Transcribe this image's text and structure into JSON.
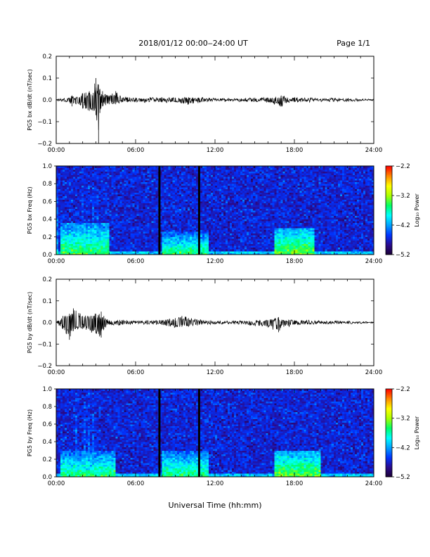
{
  "header": {
    "title": "2018/01/12  00:00‒24:00 UT",
    "page": "Page 1/1"
  },
  "xaxis_label": "Universal Time (hh:mm)",
  "colors": {
    "trace": "#000000",
    "colormap": [
      "#1a0033",
      "#2a0a8c",
      "#0033ff",
      "#00a0ff",
      "#00ffff",
      "#00ff66",
      "#aaff00",
      "#ffff00",
      "#ff8800",
      "#ff0000"
    ]
  },
  "chart_data": [
    {
      "type": "line",
      "id": "bx_dbdt",
      "ylabel": "PG5 bx dB/dt (nT/sec)",
      "xlim": [
        0,
        24
      ],
      "ylim": [
        -0.2,
        0.2
      ],
      "yticks": [
        "0.2",
        "0.1",
        "0.0",
        "−0.1",
        "−0.2"
      ],
      "xticks": [
        "00:00",
        "06:00",
        "12:00",
        "18:00",
        "24:00"
      ],
      "series": [
        {
          "x_hours": [
            0,
            1.0,
            1.2,
            1.5,
            2.0,
            2.5,
            3.0,
            3.2,
            3.3,
            3.5,
            4.0,
            4.5,
            5.0,
            6.0,
            8.0,
            9.0,
            10.0,
            11.0,
            12.0,
            14.0,
            16.0,
            17.0,
            17.5,
            18.0,
            20.0,
            22.0,
            24.0
          ],
          "envelope_max": [
            0.0,
            0.01,
            0.02,
            0.01,
            0.03,
            0.04,
            0.1,
            0.07,
            0.05,
            0.04,
            0.02,
            0.04,
            0.01,
            0.01,
            0.01,
            0.01,
            0.01,
            0.01,
            0.005,
            0.005,
            0.01,
            0.02,
            0.01,
            0.01,
            0.005,
            0.005,
            0.0
          ],
          "envelope_min": [
            0.0,
            -0.01,
            -0.03,
            -0.02,
            -0.04,
            -0.05,
            -0.07,
            -0.2,
            -0.06,
            -0.03,
            -0.02,
            -0.02,
            -0.01,
            -0.01,
            -0.01,
            -0.01,
            -0.02,
            -0.01,
            -0.005,
            -0.005,
            -0.01,
            -0.03,
            -0.01,
            -0.01,
            -0.005,
            -0.005,
            0.0
          ]
        }
      ]
    },
    {
      "type": "heatmap",
      "id": "bx_freq",
      "ylabel": "PG5 bx Freq (Hz)",
      "xlim": [
        0,
        24
      ],
      "ylim": [
        0,
        1.0
      ],
      "yticks": [
        "1.0",
        "0.8",
        "0.6",
        "0.4",
        "0.2",
        "0.0"
      ],
      "xticks": [
        "00:00",
        "06:00",
        "12:00",
        "18:00",
        "24:00"
      ],
      "colorbar": {
        "label": "Log₁₀ Power",
        "ticks": [
          "−2.2",
          "−3.2",
          "−4.2",
          "−5.2"
        ],
        "range": [
          -5.2,
          -2.2
        ]
      },
      "gap_lines_hours": [
        7.8,
        10.8
      ],
      "features": [
        {
          "t_start": 0.3,
          "t_end": 4.0,
          "f_max": 0.35,
          "power": -3.4
        },
        {
          "t_start": 8.0,
          "t_end": 11.5,
          "f_max": 0.25,
          "power": -3.5
        },
        {
          "t_start": 16.5,
          "t_end": 19.5,
          "f_max": 0.3,
          "power": -3.3
        }
      ]
    },
    {
      "type": "line",
      "id": "by_dbdt",
      "ylabel": "PG5 by dB/dt (nT/sec)",
      "xlim": [
        0,
        24
      ],
      "ylim": [
        -0.2,
        0.2
      ],
      "yticks": [
        "0.2",
        "0.1",
        "0.0",
        "−0.1",
        "−0.2"
      ],
      "xticks": [
        "00:00",
        "06:00",
        "12:00",
        "18:00",
        "24:00"
      ],
      "series": [
        {
          "x_hours": [
            0,
            0.5,
            1.0,
            1.3,
            2.0,
            3.0,
            3.4,
            3.6,
            4.0,
            5.0,
            6.0,
            8.0,
            9.0,
            9.5,
            10.0,
            11.0,
            12.0,
            14.0,
            16.0,
            16.8,
            17.2,
            18.0,
            20.0,
            22.0,
            24.0
          ],
          "envelope_max": [
            0.0,
            0.03,
            0.04,
            0.065,
            0.03,
            0.04,
            0.05,
            0.03,
            0.01,
            0.01,
            0.005,
            0.01,
            0.02,
            0.03,
            0.02,
            0.01,
            0.005,
            0.005,
            0.01,
            0.025,
            0.01,
            0.01,
            0.005,
            0.005,
            0.0
          ],
          "envelope_min": [
            0.0,
            -0.03,
            -0.08,
            -0.04,
            -0.03,
            -0.05,
            -0.07,
            -0.03,
            -0.01,
            -0.01,
            -0.005,
            -0.01,
            -0.02,
            -0.02,
            -0.02,
            -0.01,
            -0.005,
            -0.005,
            -0.02,
            -0.045,
            -0.02,
            -0.01,
            -0.005,
            -0.005,
            0.0
          ]
        }
      ]
    },
    {
      "type": "heatmap",
      "id": "by_freq",
      "ylabel": "PG5 by Freq (Hz)",
      "xlim": [
        0,
        24
      ],
      "ylim": [
        0,
        1.0
      ],
      "yticks": [
        "1.0",
        "0.8",
        "0.6",
        "0.4",
        "0.2",
        "0.0"
      ],
      "xticks": [
        "00:00",
        "06:00",
        "12:00",
        "18:00",
        "24:00"
      ],
      "colorbar": {
        "label": "Log₁₀ Power",
        "ticks": [
          "−2.2",
          "−3.2",
          "−4.2",
          "−5.2"
        ],
        "range": [
          -5.2,
          -2.2
        ]
      },
      "gap_lines_hours": [
        7.8,
        10.8
      ],
      "features": [
        {
          "t_start": 0.3,
          "t_end": 4.5,
          "f_max": 0.3,
          "power": -3.5
        },
        {
          "t_start": 8.0,
          "t_end": 11.5,
          "f_max": 0.3,
          "power": -3.5
        },
        {
          "t_start": 16.5,
          "t_end": 20.0,
          "f_max": 0.3,
          "power": -3.3
        }
      ]
    }
  ]
}
